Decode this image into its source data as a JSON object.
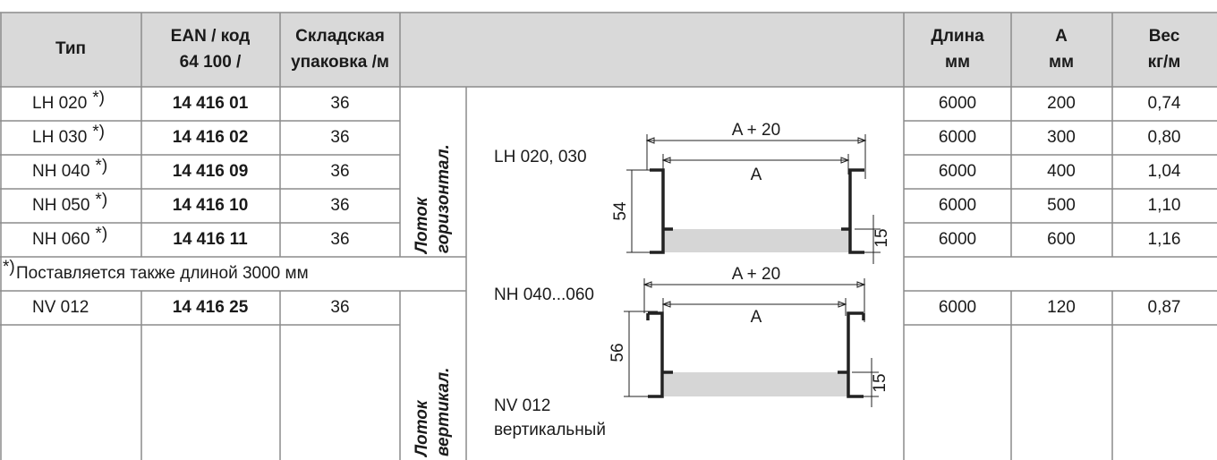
{
  "header": {
    "type": "Тип",
    "ean": [
      "EAN / код",
      "64 100 /"
    ],
    "pack": [
      "Складская",
      "упаковка /м"
    ],
    "length": [
      "Длина",
      "мм"
    ],
    "a": [
      "A",
      "мм"
    ],
    "weight": [
      "Вес",
      "кг/м"
    ]
  },
  "rows": [
    {
      "type": "LH 020",
      "mark": "*)",
      "ean": "14 416 01",
      "pack": "36",
      "length": "6000",
      "a": "200",
      "weight": "0,74"
    },
    {
      "type": "LH 030",
      "mark": "*)",
      "ean": "14 416 02",
      "pack": "36",
      "length": "6000",
      "a": "300",
      "weight": "0,80"
    },
    {
      "type": "NH 040",
      "mark": "*)",
      "ean": "14 416 09",
      "pack": "36",
      "length": "6000",
      "a": "400",
      "weight": "1,04"
    },
    {
      "type": "NH 050",
      "mark": "*)",
      "ean": "14 416 10",
      "pack": "36",
      "length": "6000",
      "a": "500",
      "weight": "1,10"
    },
    {
      "type": "NH 060",
      "mark": "*)",
      "ean": "14 416 11",
      "pack": "36",
      "length": "6000",
      "a": "600",
      "weight": "1,16"
    }
  ],
  "note": {
    "mark": "*)",
    "text": "Поставляется также длиной 3000 мм"
  },
  "rows_vertical": [
    {
      "type": "NV 012",
      "ean": "14 416 25",
      "pack": "36",
      "length": "6000",
      "a": "120",
      "weight": "0,87"
    }
  ],
  "groups": {
    "horizontal": [
      "Лоток",
      "горизонтал."
    ],
    "vertical": [
      "Лоток",
      "вертикал."
    ]
  },
  "drawing": {
    "lh_label": "LH 020, 030",
    "nh_label": "NH 040...060",
    "nv_label": "NV 012",
    "nv_sub": "вертикальный",
    "lh_dims": {
      "outer": "A + 20",
      "inner": "A",
      "height": "54",
      "flange": "15"
    },
    "nh_dims": {
      "outer": "A + 20",
      "inner": "A",
      "height": "56",
      "flange": "15"
    }
  }
}
